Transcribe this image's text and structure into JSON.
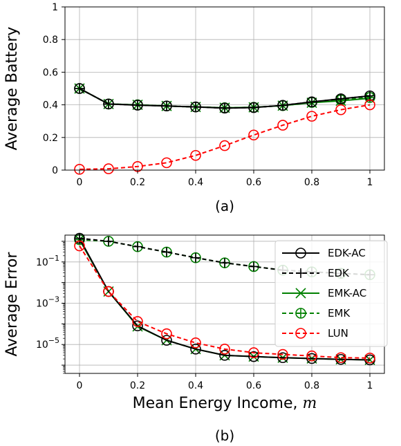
{
  "chart_data": [
    {
      "type": "line",
      "caption": "(a)",
      "xlabel": "",
      "ylabel": "Average Battery",
      "xlim": [
        -0.05,
        1.05
      ],
      "ylim": [
        0,
        1
      ],
      "yscale": "linear",
      "grid": true,
      "x": [
        0,
        0.1,
        0.2,
        0.3,
        0.4,
        0.5,
        0.6,
        0.7,
        0.8,
        0.9,
        1
      ],
      "xticks": [
        0,
        0.2,
        0.4,
        0.6,
        0.8,
        1
      ],
      "xtick_labels": [
        "0",
        "0.2",
        "0.4",
        "0.6",
        "0.8",
        "1"
      ],
      "yticks": [
        0,
        0.2,
        0.4,
        0.6,
        0.8,
        1
      ],
      "ytick_labels": [
        "0",
        "0.2",
        "0.4",
        "0.6",
        "0.8",
        "1"
      ],
      "series": [
        {
          "name": "EMK",
          "color": "#008000",
          "dash": "6,4",
          "marker": "circle-plus",
          "values": [
            0.5,
            0.405,
            0.4,
            0.393,
            0.387,
            0.382,
            0.385,
            0.395,
            0.415,
            0.43,
            0.445
          ]
        },
        {
          "name": "EMK-AC",
          "color": "#008000",
          "dash": "",
          "marker": "x",
          "values": [
            0.5,
            0.405,
            0.4,
            0.393,
            0.387,
            0.382,
            0.385,
            0.395,
            0.413,
            0.425,
            0.44
          ]
        },
        {
          "name": "EDK",
          "color": "#000000",
          "dash": "6,4",
          "marker": "plus",
          "values": [
            0.5,
            0.405,
            0.398,
            0.393,
            0.387,
            0.38,
            0.383,
            0.397,
            0.418,
            0.437,
            0.455
          ]
        },
        {
          "name": "EDK-AC",
          "color": "#000000",
          "dash": "",
          "marker": "circle",
          "values": [
            0.5,
            0.405,
            0.398,
            0.393,
            0.387,
            0.38,
            0.383,
            0.397,
            0.418,
            0.437,
            0.455
          ]
        },
        {
          "name": "LUN",
          "color": "#ff0000",
          "dash": "6,4",
          "marker": "circle",
          "values": [
            0.005,
            0.008,
            0.022,
            0.045,
            0.09,
            0.15,
            0.215,
            0.275,
            0.33,
            0.37,
            0.4
          ]
        }
      ]
    },
    {
      "type": "line",
      "caption": "(b)",
      "xlabel": "Mean Energy Income, ",
      "xlabel_var": "m",
      "ylabel": "Average Error",
      "xlim": [
        -0.05,
        1.05
      ],
      "ylim_log10": [
        -6.4,
        0.3
      ],
      "yscale": "log",
      "grid": true,
      "x": [
        0,
        0.1,
        0.2,
        0.3,
        0.4,
        0.5,
        0.6,
        0.7,
        0.8,
        0.9,
        1
      ],
      "xticks": [
        0,
        0.2,
        0.4,
        0.6,
        0.8,
        1
      ],
      "xtick_labels": [
        "0",
        "0.2",
        "0.4",
        "0.6",
        "0.8",
        "1"
      ],
      "yticks_log10": [
        -5,
        -3,
        -1
      ],
      "ytick_base": "10",
      "ytick_exps": [
        "−5",
        "−3",
        "−1"
      ],
      "legend_position": "top-right",
      "series": [
        {
          "name": "EMK",
          "color": "#008000",
          "dash": "6,4",
          "marker": "circle-plus",
          "values": [
            1.2,
            1.0,
            0.55,
            0.3,
            0.16,
            0.09,
            0.06,
            0.04,
            0.033,
            0.028,
            0.024
          ]
        },
        {
          "name": "EMK-AC",
          "color": "#008000",
          "dash": "",
          "marker": "x",
          "values": [
            1.2,
            0.0037,
            7.5e-05,
            1.6e-05,
            6e-06,
            3e-06,
            2.6e-06,
            2.3e-06,
            2.1e-06,
            1.9e-06,
            1.8e-06
          ]
        },
        {
          "name": "EDK",
          "color": "#000000",
          "dash": "6,4",
          "marker": "plus",
          "values": [
            1.4,
            1.0,
            0.55,
            0.3,
            0.16,
            0.09,
            0.06,
            0.04,
            0.033,
            0.028,
            0.024
          ]
        },
        {
          "name": "EDK-AC",
          "color": "#000000",
          "dash": "",
          "marker": "circle",
          "values": [
            1.4,
            0.0037,
            8e-05,
            1.6e-05,
            6e-06,
            3e-06,
            2.6e-06,
            2.3e-06,
            2.1e-06,
            1.9e-06,
            1.8e-06
          ]
        },
        {
          "name": "LUN",
          "color": "#ff0000",
          "dash": "6,4",
          "marker": "circle",
          "values": [
            0.6,
            0.0037,
            0.00013,
            3.3e-05,
            1.2e-05,
            6e-06,
            4e-06,
            3.3e-06,
            2.8e-06,
            2.3e-06,
            2.2e-06
          ]
        }
      ],
      "legend": [
        {
          "name": "EDK-AC",
          "color": "#000000",
          "dash": "",
          "marker": "circle"
        },
        {
          "name": "EDK",
          "color": "#000000",
          "dash": "6,4",
          "marker": "plus"
        },
        {
          "name": "EMK-AC",
          "color": "#008000",
          "dash": "",
          "marker": "x"
        },
        {
          "name": "EMK",
          "color": "#008000",
          "dash": "6,4",
          "marker": "circle-plus"
        },
        {
          "name": "LUN",
          "color": "#ff0000",
          "dash": "6,4",
          "marker": "circle"
        }
      ]
    }
  ]
}
